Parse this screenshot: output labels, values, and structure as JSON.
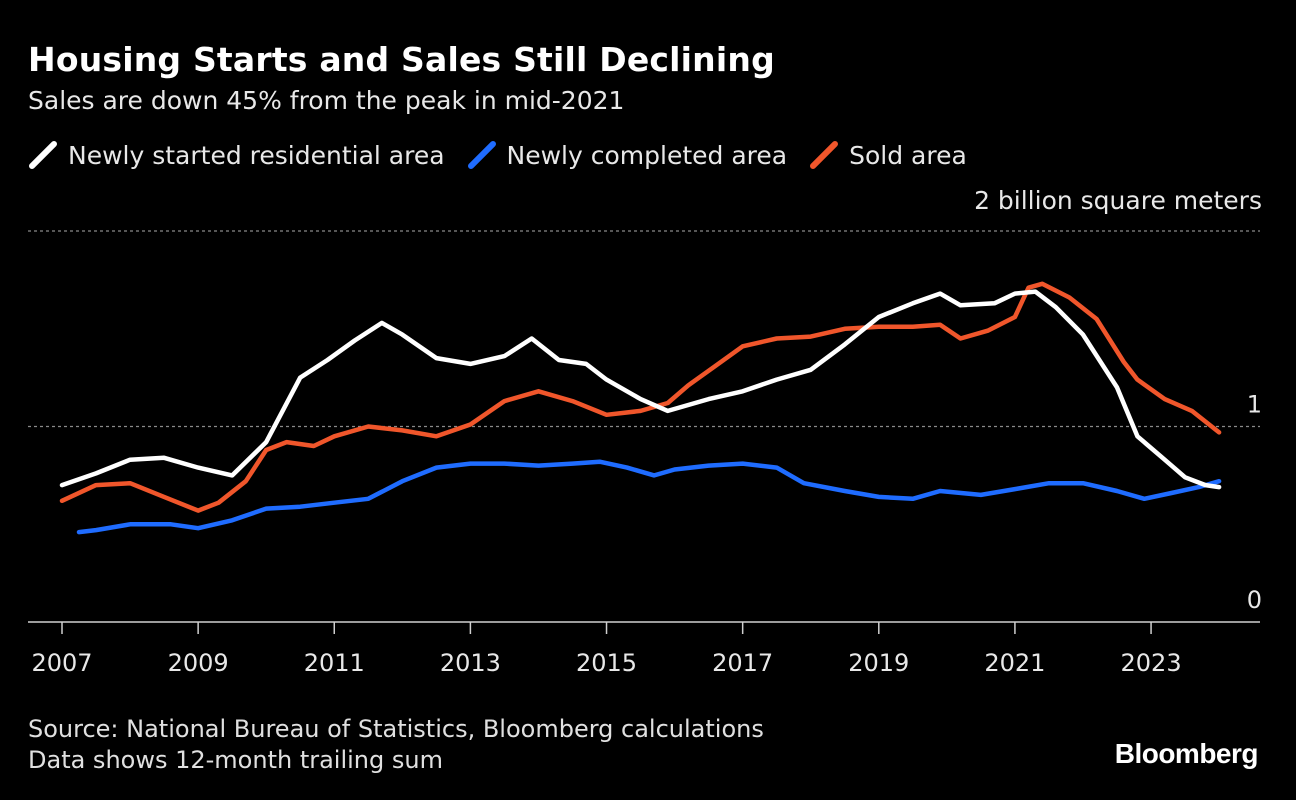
{
  "header": {
    "title": "Housing Starts and Sales Still Declining",
    "subtitle": "Sales are down 45% from the peak in mid-2021"
  },
  "chart_data": {
    "type": "line",
    "title": "Housing Starts and Sales Still Declining",
    "subtitle": "Sales are down 45% from the peak in mid-2021",
    "ylabel": "2 billion square meters",
    "ylim": [
      0,
      2
    ],
    "xlim": [
      2007,
      2025.1
    ],
    "y_ticks": [
      {
        "value": 0,
        "label": "0"
      },
      {
        "value": 1,
        "label": "1"
      },
      {
        "value": 2,
        "label": ""
      }
    ],
    "x_ticks": [
      {
        "value": 2007,
        "label": "2007"
      },
      {
        "value": 2009,
        "label": "2009"
      },
      {
        "value": 2011,
        "label": "2011"
      },
      {
        "value": 2013,
        "label": "2013"
      },
      {
        "value": 2015,
        "label": "2015"
      },
      {
        "value": 2017,
        "label": "2017"
      },
      {
        "value": 2019,
        "label": "2019"
      },
      {
        "value": 2021,
        "label": "2021"
      },
      {
        "value": 2023,
        "label": "2023"
      }
    ],
    "grid": true,
    "legend_position": "top-left",
    "series": [
      {
        "name": "Newly started residential area",
        "color": "#ffffff",
        "x": [
          2007.0,
          2007.5,
          2008.0,
          2008.5,
          2009.0,
          2009.5,
          2010.0,
          2010.5,
          2010.9,
          2011.3,
          2011.7,
          2012.0,
          2012.5,
          2013.0,
          2013.5,
          2013.9,
          2014.3,
          2014.7,
          2015.0,
          2015.5,
          2015.9,
          2016.5,
          2017.0,
          2017.5,
          2018.0,
          2018.5,
          2019.0,
          2019.5,
          2019.9,
          2020.2,
          2020.7,
          2021.0,
          2021.3,
          2021.6,
          2022.0,
          2022.5,
          2022.8,
          2023.2,
          2023.5,
          2023.8,
          2024.0
        ],
        "values": [
          0.7,
          0.76,
          0.83,
          0.84,
          0.79,
          0.75,
          0.92,
          1.25,
          1.34,
          1.44,
          1.53,
          1.47,
          1.35,
          1.32,
          1.36,
          1.45,
          1.34,
          1.32,
          1.24,
          1.14,
          1.08,
          1.14,
          1.18,
          1.24,
          1.29,
          1.42,
          1.56,
          1.63,
          1.68,
          1.62,
          1.63,
          1.68,
          1.69,
          1.61,
          1.47,
          1.2,
          0.95,
          0.83,
          0.74,
          0.7,
          0.69
        ]
      },
      {
        "name": "Newly completed area",
        "color": "#1f6cff",
        "x": [
          2007.25,
          2007.5,
          2008.0,
          2008.6,
          2009.0,
          2009.5,
          2010.0,
          2010.5,
          2011.0,
          2011.5,
          2012.0,
          2012.5,
          2013.0,
          2013.5,
          2014.0,
          2014.5,
          2014.9,
          2015.3,
          2015.7,
          2016.0,
          2016.5,
          2017.0,
          2017.5,
          2017.9,
          2018.5,
          2019.0,
          2019.5,
          2019.9,
          2020.5,
          2021.0,
          2021.5,
          2022.0,
          2022.5,
          2022.9,
          2023.3,
          2023.7,
          2024.0
        ],
        "values": [
          0.46,
          0.47,
          0.5,
          0.5,
          0.48,
          0.52,
          0.58,
          0.59,
          0.61,
          0.63,
          0.72,
          0.79,
          0.81,
          0.81,
          0.8,
          0.81,
          0.82,
          0.79,
          0.75,
          0.78,
          0.8,
          0.81,
          0.79,
          0.71,
          0.67,
          0.64,
          0.63,
          0.67,
          0.65,
          0.68,
          0.71,
          0.71,
          0.67,
          0.63,
          0.66,
          0.69,
          0.72
        ]
      },
      {
        "name": "Sold area",
        "color": "#f0562b",
        "x": [
          2007.0,
          2007.5,
          2008.0,
          2008.5,
          2009.0,
          2009.3,
          2009.7,
          2010.0,
          2010.3,
          2010.7,
          2011.0,
          2011.5,
          2012.0,
          2012.5,
          2013.0,
          2013.5,
          2014.0,
          2014.5,
          2015.0,
          2015.5,
          2015.9,
          2016.2,
          2016.6,
          2017.0,
          2017.5,
          2018.0,
          2018.5,
          2019.0,
          2019.5,
          2019.9,
          2020.2,
          2020.6,
          2021.0,
          2021.2,
          2021.4,
          2021.8,
          2022.2,
          2022.6,
          2022.8,
          2023.2,
          2023.6,
          2024.0
        ],
        "values": [
          0.62,
          0.7,
          0.71,
          0.64,
          0.57,
          0.61,
          0.72,
          0.88,
          0.92,
          0.9,
          0.95,
          1.0,
          0.98,
          0.95,
          1.01,
          1.13,
          1.18,
          1.13,
          1.06,
          1.08,
          1.12,
          1.21,
          1.31,
          1.41,
          1.45,
          1.46,
          1.5,
          1.51,
          1.51,
          1.52,
          1.45,
          1.49,
          1.56,
          1.71,
          1.73,
          1.66,
          1.55,
          1.33,
          1.24,
          1.14,
          1.08,
          0.97
        ]
      }
    ]
  },
  "footer": {
    "source": "Source: National Bureau of Statistics, Bloomberg calculations",
    "note": "Data shows 12-month trailing sum",
    "brand": "Bloomberg"
  }
}
